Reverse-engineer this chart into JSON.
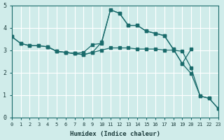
{
  "xlabel": "Humidex (Indice chaleur)",
  "ylabel": "",
  "bg_color": "#d0ecea",
  "line_color": "#1a6b6b",
  "grid_color": "#ffffff",
  "minor_grid_color": "#c0dede",
  "xlim": [
    0,
    23
  ],
  "ylim": [
    0,
    5
  ],
  "yticks": [
    0,
    1,
    2,
    3,
    4,
    5
  ],
  "xticks": [
    0,
    1,
    2,
    3,
    4,
    5,
    6,
    7,
    8,
    9,
    10,
    11,
    12,
    13,
    14,
    15,
    16,
    17,
    18,
    19,
    20,
    21,
    22,
    23
  ],
  "lines": [
    {
      "x": [
        0,
        1,
        2,
        3,
        4,
        5,
        6,
        7,
        8,
        9,
        10,
        11,
        12,
        13,
        14,
        15,
        16,
        17,
        18,
        19,
        20
      ],
      "y": [
        3.6,
        3.3,
        3.2,
        3.2,
        3.15,
        2.95,
        2.9,
        2.85,
        2.9,
        3.25,
        3.3,
        4.8,
        4.65,
        4.1,
        4.1,
        3.85,
        3.75,
        3.65,
        3.05,
        2.4,
        3.05
      ]
    },
    {
      "x": [
        0,
        1,
        2,
        3,
        4,
        5,
        6,
        7,
        8,
        9,
        10,
        11,
        12,
        13,
        14,
        15,
        16,
        17,
        18,
        19,
        20,
        21,
        22,
        23
      ],
      "y": [
        3.6,
        3.3,
        3.2,
        3.2,
        3.15,
        2.95,
        2.9,
        2.85,
        2.8,
        2.9,
        3.0,
        3.1,
        3.1,
        3.1,
        3.05,
        3.05,
        3.05,
        3.0,
        3.0,
        2.95,
        2.2,
        0.95,
        0.85,
        0.4
      ]
    },
    {
      "x": [
        4,
        5,
        6,
        7,
        8,
        9,
        10,
        11,
        12,
        13,
        14,
        15,
        16,
        17,
        18,
        19,
        20,
        21,
        22,
        23
      ],
      "y": [
        3.15,
        2.95,
        2.9,
        2.85,
        2.8,
        2.9,
        3.35,
        4.8,
        4.65,
        4.1,
        4.1,
        3.85,
        3.75,
        3.65,
        3.05,
        2.4,
        1.95,
        0.95,
        0.85,
        0.4
      ]
    }
  ]
}
